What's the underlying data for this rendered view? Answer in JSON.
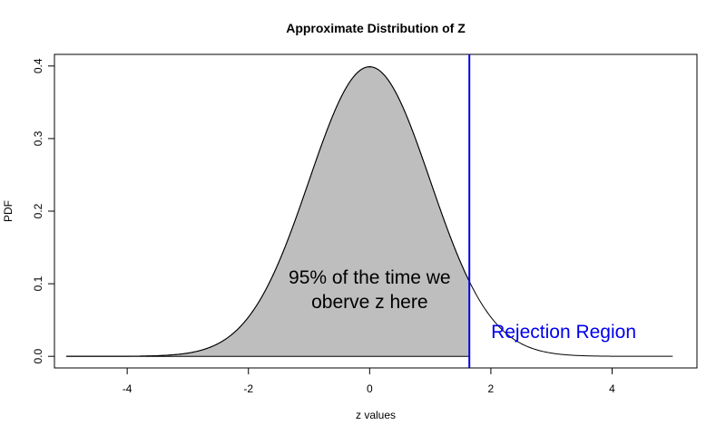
{
  "chart_data": {
    "type": "area",
    "title": "Approximate Distribution of Z",
    "xlabel": "z values",
    "ylabel": "PDF",
    "xlim": [
      -5.2,
      5.4
    ],
    "ylim": [
      -0.016,
      0.416
    ],
    "x_ticks": [
      -4,
      -2,
      0,
      2,
      4
    ],
    "y_ticks": [
      0.0,
      0.1,
      0.2,
      0.3,
      0.4
    ],
    "x_tick_labels": [
      "-4",
      "-2",
      "0",
      "2",
      "4"
    ],
    "y_tick_labels": [
      "0.0",
      "0.1",
      "0.2",
      "0.3",
      "0.4"
    ],
    "grid": false,
    "legend": "none",
    "series": [
      {
        "curve": "standard normal density",
        "x_range": [
          -5,
          5
        ],
        "shade_from": -5,
        "shade_to": 1.645,
        "line_color": "#000000",
        "fill_color": "#bebebe"
      }
    ],
    "critical_value": 1.645,
    "critical_line_color": "#0000ee",
    "annotations": [
      {
        "text_lines": [
          "95% of the time we",
          "oberve z here"
        ],
        "x": 0,
        "y": 0.1
      },
      {
        "text_lines": [
          "Rejection Region"
        ],
        "x": 3.2,
        "y": 0.025
      }
    ]
  }
}
